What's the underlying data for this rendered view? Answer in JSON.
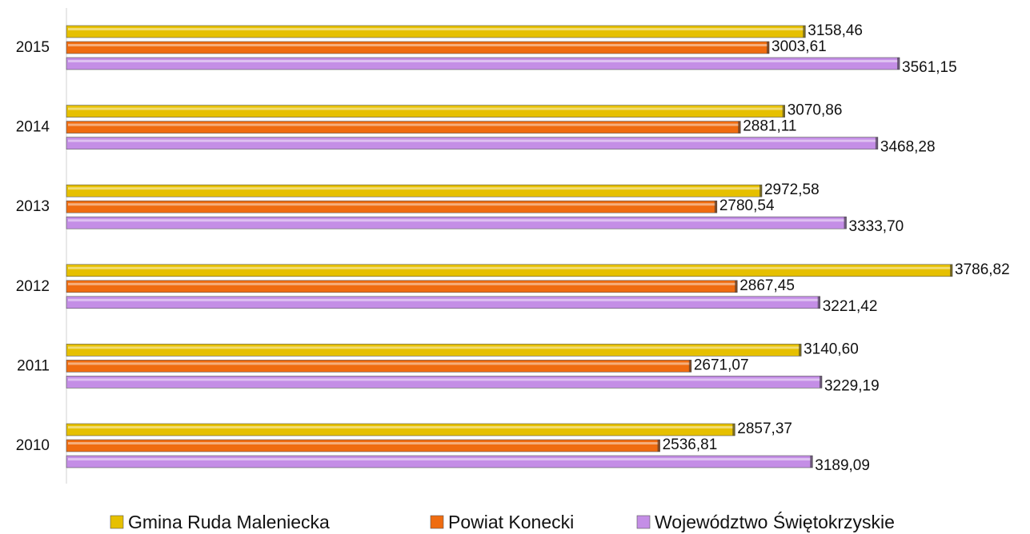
{
  "chart_data": {
    "type": "hbar",
    "categories": [
      "2015",
      "2014",
      "2013",
      "2012",
      "2011",
      "2010"
    ],
    "series": [
      {
        "name": "Gmina Ruda Maleniecka",
        "color": "#e6c000",
        "values": [
          3158.46,
          3070.86,
          2972.58,
          3786.82,
          3140.6,
          2857.37
        ],
        "value_labels": [
          "3158,46",
          "3070,86",
          "2972,58",
          "3786,82",
          "3140,60",
          "2857,37"
        ]
      },
      {
        "name": "Powiat Konecki",
        "color": "#ef6c10",
        "values": [
          3003.61,
          2881.11,
          2780.54,
          2867.45,
          2671.07,
          2536.81
        ],
        "value_labels": [
          "3003,61",
          "2881,11",
          "2780,54",
          "2867,45",
          "2671,07",
          "2536,81"
        ]
      },
      {
        "name": "Województwo Świętokrzyskie",
        "color": "#c48ee6",
        "values": [
          3561.15,
          3468.28,
          3333.7,
          3221.42,
          3229.19,
          3189.09
        ],
        "value_labels": [
          "3561,15",
          "3468,28",
          "3333,70",
          "3221,42",
          "3229,19",
          "3189,09"
        ]
      }
    ]
  }
}
